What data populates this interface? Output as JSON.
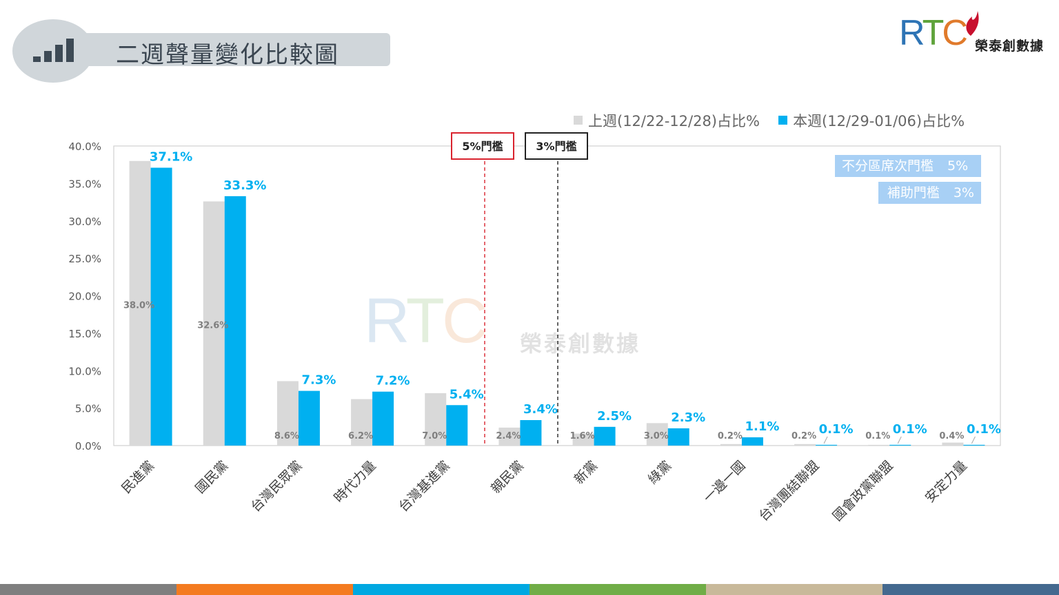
{
  "header": {
    "title": "二週聲量變化比較圖"
  },
  "brand": {
    "logo_text": "RTC",
    "logo_r": "R",
    "logo_t": "T",
    "logo_c": "C",
    "name": "榮泰創數據"
  },
  "watermark": {
    "logo_r": "R",
    "logo_t": "T",
    "logo_c": "C",
    "name": "榮泰創數據"
  },
  "thresholds": {
    "five": "5%門檻",
    "three": "3%門檻"
  },
  "notes": {
    "at_large_label": "不分區席次門檻",
    "at_large_value": "5%",
    "subsidy_label": "補助門檻",
    "subsidy_value": "3%"
  },
  "colors": {
    "last_week": "#d9d9d9",
    "this_week": "#00b0f0",
    "label_blue": "#00b0f0",
    "strip": [
      "#7f7f7f",
      "#f47b20",
      "#00a8e1",
      "#70ad47",
      "#c8b99a",
      "#44698f"
    ]
  },
  "chart_data": {
    "type": "bar",
    "categories": [
      "民進黨",
      "國民黨",
      "台灣民眾黨",
      "時代力量",
      "台灣基進黨",
      "親民黨",
      "新黨",
      "綠黨",
      "一邊一國",
      "台灣團結聯盟",
      "國會政黨聯盟",
      "安定力量"
    ],
    "series": [
      {
        "name": "上週(12/22-12/28)占比%",
        "values": [
          38.0,
          32.6,
          8.6,
          6.2,
          7.0,
          2.4,
          1.6,
          3.0,
          0.2,
          0.2,
          0.1,
          0.4
        ],
        "labels": [
          "38.0%",
          "32.6%",
          "8.6%",
          "6.2%",
          "7.0%",
          "2.4%",
          "1.6%",
          "3.0%",
          "0.2%",
          "0.2%",
          "0.1%",
          "0.4%"
        ]
      },
      {
        "name": "本週(12/29-01/06)占比%",
        "values": [
          37.1,
          33.3,
          7.3,
          7.2,
          5.4,
          3.4,
          2.5,
          2.3,
          1.1,
          0.1,
          0.1,
          0.1
        ],
        "labels": [
          "37.1%",
          "33.3%",
          "7.3%",
          "7.2%",
          "5.4%",
          "3.4%",
          "2.5%",
          "2.3%",
          "1.1%",
          "0.1%",
          "0.1%",
          "0.1%"
        ]
      }
    ],
    "yticks": [
      "0.0%",
      "5.0%",
      "10.0%",
      "15.0%",
      "20.0%",
      "25.0%",
      "30.0%",
      "35.0%",
      "40.0%"
    ],
    "ylim": [
      0,
      40
    ],
    "legend": "top-right",
    "grid": false
  }
}
